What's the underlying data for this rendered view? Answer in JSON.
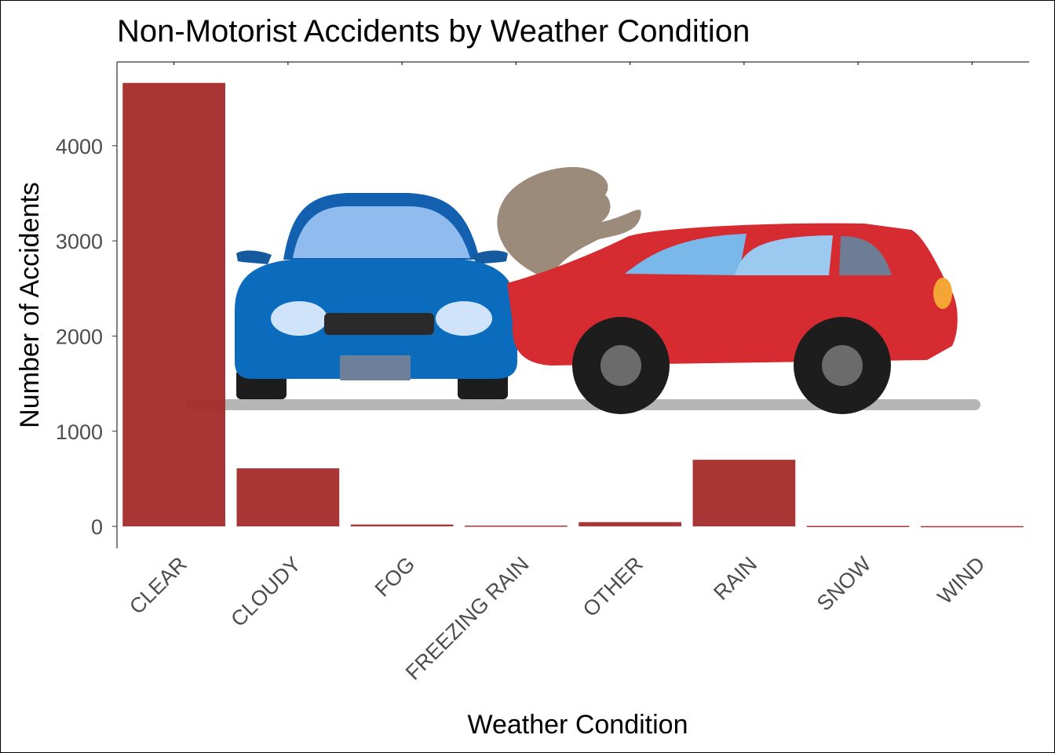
{
  "chart_data": {
    "type": "bar",
    "title": "Non-Motorist Accidents by Weather Condition",
    "xlabel": "Weather Condition",
    "ylabel": "Number of Accidents",
    "categories": [
      "CLEAR",
      "CLOUDY",
      "FOG",
      "FREEZING RAIN",
      "OTHER",
      "RAIN",
      "SNOW",
      "WIND"
    ],
    "values": [
      4660,
      610,
      20,
      8,
      45,
      700,
      5,
      3
    ],
    "yticks": [
      0,
      1000,
      2000,
      3000,
      4000
    ],
    "ylim": [
      -230,
      4880
    ],
    "grid": false,
    "legend": "none",
    "bar_color": "#a52a2a",
    "background_image": "car-collision-illustration"
  }
}
